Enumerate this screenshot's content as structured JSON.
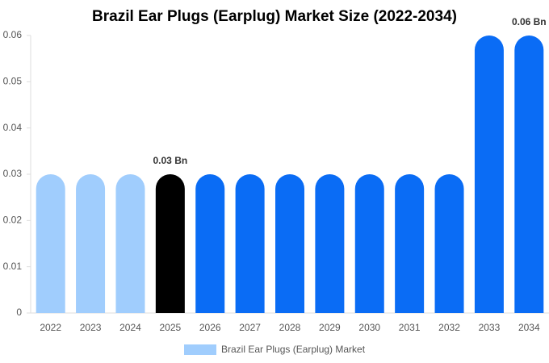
{
  "chart_data": {
    "type": "bar",
    "title": "Brazil Ear Plugs (Earplug) Market Size (2022-2034)",
    "categories": [
      "2022",
      "2023",
      "2024",
      "2025",
      "2026",
      "2027",
      "2028",
      "2029",
      "2030",
      "2031",
      "2032",
      "2033",
      "2034"
    ],
    "series": [
      {
        "name": "Brazil Ear Plugs (Earplug) Market",
        "color": "#a0cdfd",
        "colors": [
          "#a0cdfd",
          "#a0cdfd",
          "#a0cdfd",
          "#000000",
          "#0a6cf5",
          "#0a6cf5",
          "#0a6cf5",
          "#0a6cf5",
          "#0a6cf5",
          "#0a6cf5",
          "#0a6cf5",
          "#0a6cf5",
          "#0a6cf5"
        ],
        "values": [
          0.03,
          0.03,
          0.03,
          0.03,
          0.03,
          0.03,
          0.03,
          0.03,
          0.03,
          0.03,
          0.03,
          0.06,
          0.06
        ],
        "value_labels": [
          null,
          null,
          null,
          "0.03 Bn",
          null,
          null,
          null,
          null,
          null,
          null,
          null,
          null,
          "0.06 Bn"
        ]
      }
    ],
    "ylim": [
      0,
      0.06
    ],
    "yticks": [
      0,
      0.01,
      0.02,
      0.03,
      0.04,
      0.05,
      0.06
    ],
    "grid": false
  }
}
